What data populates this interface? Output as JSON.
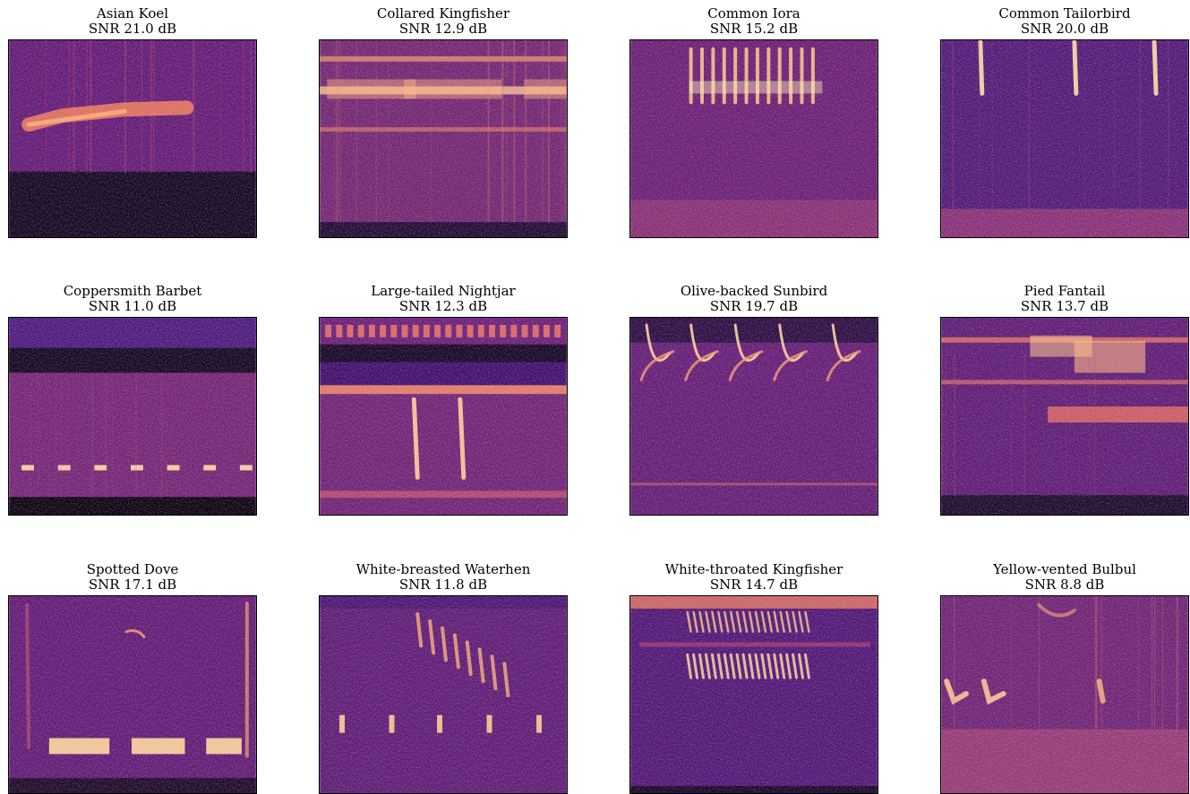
{
  "figure": {
    "colormap": [
      "#000004",
      "#3b0f70",
      "#8c2981",
      "#de4968",
      "#fe9f6d",
      "#fcfdbf"
    ]
  },
  "chart_data": [
    {
      "type": "heatmap",
      "title": "Asian Koel",
      "subtitle": "SNR 21.0 dB",
      "snr_db": 21.0,
      "colormap": "magma",
      "axes_visible": false
    },
    {
      "type": "heatmap",
      "title": "Collared Kingfisher",
      "subtitle": "SNR 12.9 dB",
      "snr_db": 12.9,
      "colormap": "magma",
      "axes_visible": false
    },
    {
      "type": "heatmap",
      "title": "Common Iora",
      "subtitle": "SNR 15.2 dB",
      "snr_db": 15.2,
      "colormap": "magma",
      "axes_visible": false
    },
    {
      "type": "heatmap",
      "title": "Common Tailorbird",
      "subtitle": "SNR 20.0 dB",
      "snr_db": 20.0,
      "colormap": "magma",
      "axes_visible": false
    },
    {
      "type": "heatmap",
      "title": "Coppersmith Barbet",
      "subtitle": "SNR 11.0 dB",
      "snr_db": 11.0,
      "colormap": "magma",
      "axes_visible": false
    },
    {
      "type": "heatmap",
      "title": "Large-tailed Nightjar",
      "subtitle": "SNR 12.3 dB",
      "snr_db": 12.3,
      "colormap": "magma",
      "axes_visible": false
    },
    {
      "type": "heatmap",
      "title": "Olive-backed Sunbird",
      "subtitle": "SNR 19.7 dB",
      "snr_db": 19.7,
      "colormap": "magma",
      "axes_visible": false
    },
    {
      "type": "heatmap",
      "title": "Pied Fantail",
      "subtitle": "SNR 13.7 dB",
      "snr_db": 13.7,
      "colormap": "magma",
      "axes_visible": false
    },
    {
      "type": "heatmap",
      "title": "Spotted Dove",
      "subtitle": "SNR 17.1 dB",
      "snr_db": 17.1,
      "colormap": "magma",
      "axes_visible": false
    },
    {
      "type": "heatmap",
      "title": "White-breasted Waterhen",
      "subtitle": "SNR 11.8 dB",
      "snr_db": 11.8,
      "colormap": "magma",
      "axes_visible": false
    },
    {
      "type": "heatmap",
      "title": "White-throated Kingfisher",
      "subtitle": "SNR 14.7 dB",
      "snr_db": 14.7,
      "colormap": "magma",
      "axes_visible": false
    },
    {
      "type": "heatmap",
      "title": "Yellow-vented Bulbul",
      "subtitle": "SNR 8.8 dB",
      "snr_db": 8.8,
      "colormap": "magma",
      "axes_visible": false
    }
  ]
}
